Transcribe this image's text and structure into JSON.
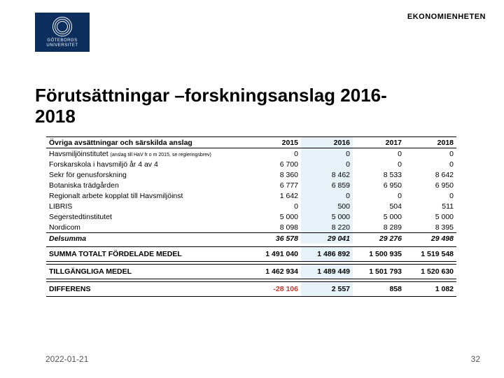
{
  "header": {
    "department": "EKONOMIENHETEN",
    "logo_text1": "GÖTEBORGS",
    "logo_text2": "UNIVERSITET",
    "logo_bg": "#0b2e5c"
  },
  "title_line1": "Förutsättningar –forskningsanslag 2016-",
  "title_line2": "2018",
  "table": {
    "header_label": "Övriga avsättningar och särskilda anslag",
    "years": [
      "2015",
      "2016",
      "2017",
      "2018"
    ],
    "highlight_col_index": 1,
    "highlight_bg": "#e6f1f8",
    "rows": [
      {
        "label": "Havsmiljöinstitutet",
        "note": "(anslag till HaV fr o m 2015, se regleringsbrev)",
        "values": [
          "0",
          "0",
          "0",
          "0"
        ]
      },
      {
        "label": "Forskarskola i havsmiljö år 4 av 4",
        "values": [
          "6 700",
          "0",
          "0",
          "0"
        ]
      },
      {
        "label": "Sekr för genusforskning",
        "values": [
          "8 360",
          "8 462",
          "8 533",
          "8 642"
        ]
      },
      {
        "label": "Botaniska trädgården",
        "values": [
          "6 777",
          "6 859",
          "6 950",
          "6 950"
        ]
      },
      {
        "label": "Regionalt arbete kopplat till Havsmiljöinst",
        "values": [
          "1 642",
          "0",
          "0",
          "0"
        ]
      },
      {
        "label": "LIBRIS",
        "values": [
          "0",
          "500",
          "504",
          "511"
        ]
      },
      {
        "label": "Segerstedtinstitutet",
        "values": [
          "5 000",
          "5 000",
          "5 000",
          "5 000"
        ]
      },
      {
        "label": "Nordicom",
        "values": [
          "8 098",
          "8 220",
          "8 289",
          "8 395"
        ]
      }
    ],
    "subtotal": {
      "label": "Delsumma",
      "values": [
        "36 578",
        "29 041",
        "29 276",
        "29 498"
      ]
    },
    "sections": [
      {
        "label": "SUMMA TOTALT FÖRDELADE MEDEL",
        "values": [
          "1 491 040",
          "1 486 892",
          "1 500 935",
          "1 519 548"
        ]
      },
      {
        "label": "TILLGÄNGLIGA MEDEL",
        "values": [
          "1 462 934",
          "1 489 449",
          "1 501 793",
          "1 520 630"
        ]
      },
      {
        "label": "DIFFERENS",
        "values": [
          "-28 106",
          "2 557",
          "858",
          "1 082"
        ],
        "neg_index": 0
      }
    ],
    "neg_color": "#c0392b"
  },
  "footer": {
    "date": "2022-01-21",
    "page": "32"
  }
}
